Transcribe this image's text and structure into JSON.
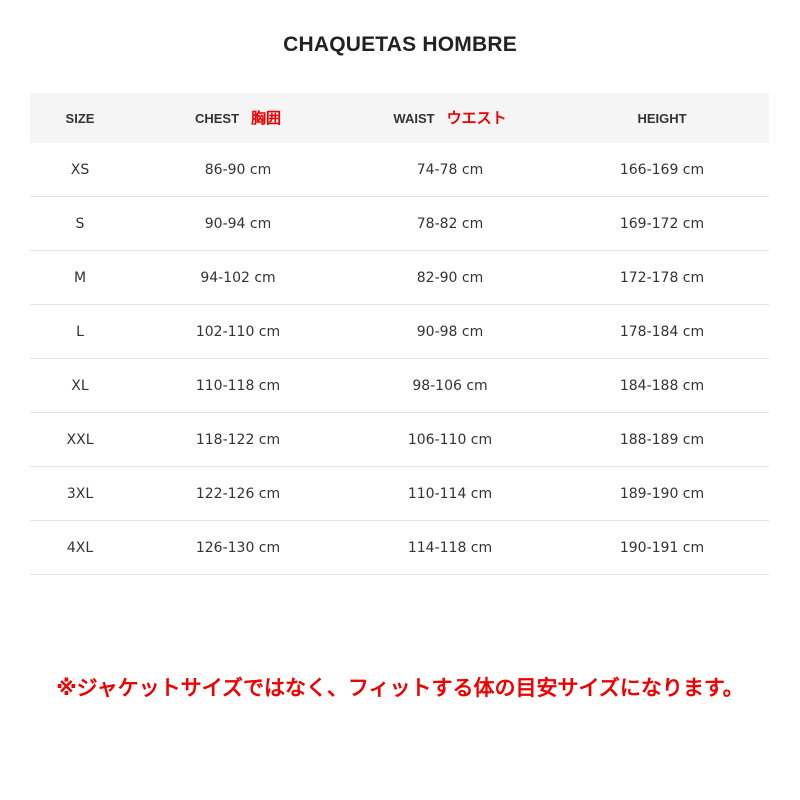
{
  "title": "CHAQUETAS HOMBRE",
  "table": {
    "headers": [
      {
        "label": "SIZE",
        "jp": ""
      },
      {
        "label": "CHEST",
        "jp": "胸囲"
      },
      {
        "label": "WAIST",
        "jp": "ウエスト"
      },
      {
        "label": "HEIGHT",
        "jp": ""
      }
    ],
    "rows": [
      [
        "XS",
        "86-90 cm",
        "74-78 cm",
        "166-169 cm"
      ],
      [
        "S",
        "90-94 cm",
        "78-82 cm",
        "169-172 cm"
      ],
      [
        "M",
        "94-102 cm",
        "82-90 cm",
        "172-178 cm"
      ],
      [
        "L",
        "102-110 cm",
        "90-98 cm",
        "178-184 cm"
      ],
      [
        "XL",
        "110-118 cm",
        "98-106 cm",
        "184-188 cm"
      ],
      [
        "XXL",
        "118-122 cm",
        "106-110 cm",
        "188-189 cm"
      ],
      [
        "3XL",
        "122-126 cm",
        "110-114 cm",
        "189-190 cm"
      ],
      [
        "4XL",
        "126-130 cm",
        "114-118 cm",
        "190-191 cm"
      ]
    ]
  },
  "note": "※ジャケットサイズではなく、フィットする体の目安サイズになります。",
  "colors": {
    "accent_red": "#e00000",
    "header_bg": "#f5f5f5"
  }
}
